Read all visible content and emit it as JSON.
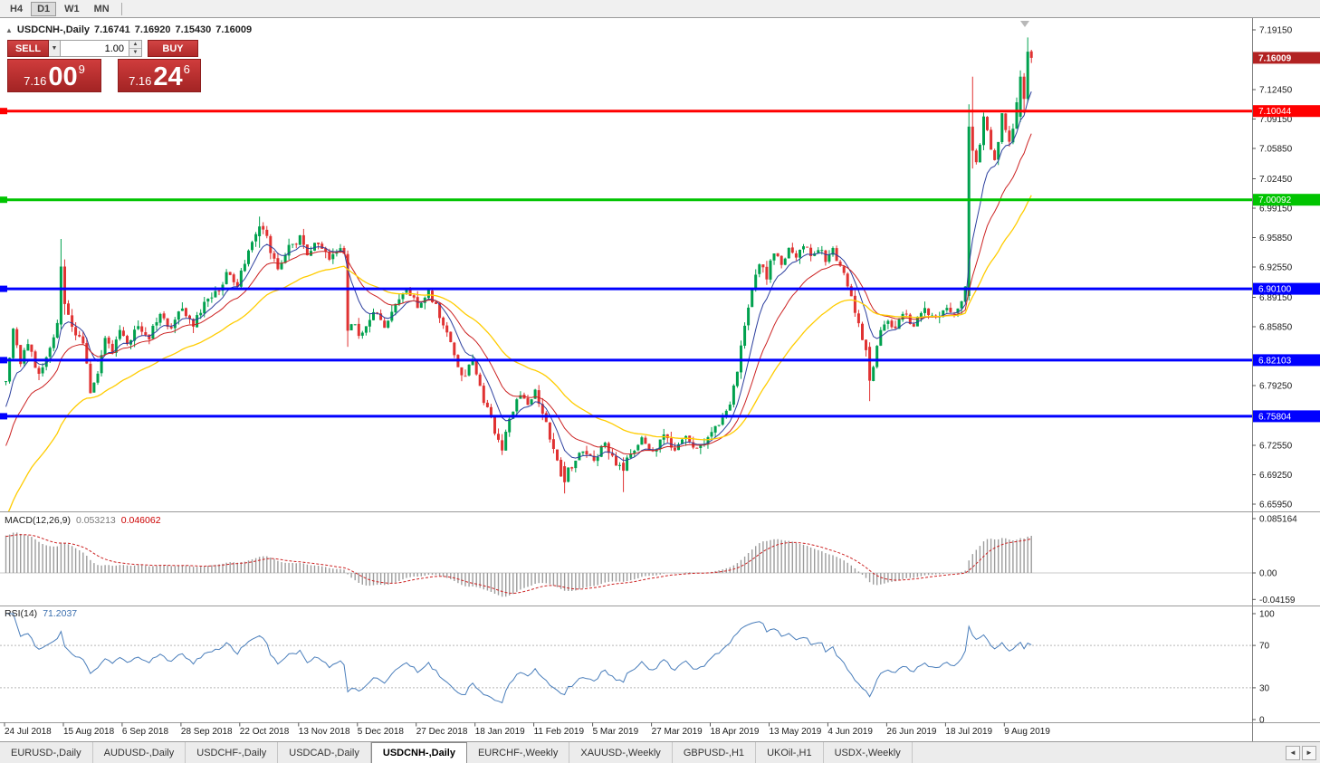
{
  "window": {
    "timeframes": [
      {
        "label": "H4",
        "active": false
      },
      {
        "label": "D1",
        "active": true
      },
      {
        "label": "W1",
        "active": false
      },
      {
        "label": "MN",
        "active": false
      }
    ]
  },
  "header": {
    "symbol_title": "USDCNH-,Daily",
    "open": "7.16741",
    "high": "7.16920",
    "low": "7.15430",
    "close": "7.16009"
  },
  "one_click": {
    "sell_label": "SELL",
    "buy_label": "BUY",
    "volume": "1.00",
    "sell_price": {
      "prefix": "7.16",
      "big": "00",
      "sup": "9"
    },
    "buy_price": {
      "prefix": "7.16",
      "big": "24",
      "sup": "6"
    }
  },
  "price_axis": {
    "ticks": [
      "7.19150",
      "7.12450",
      "7.09150",
      "7.05850",
      "7.02450",
      "6.99150",
      "6.95850",
      "6.92550",
      "6.89150",
      "6.85850",
      "6.79250",
      "6.72550",
      "6.69250",
      "6.65950"
    ],
    "current": {
      "value": "7.16009",
      "bg": "#b22222"
    }
  },
  "macd_panel": {
    "label": "MACD(12,26,9)",
    "main_value": "0.053213",
    "signal_value": "0.046062",
    "axis": [
      "0.085164",
      "0.00",
      "-0.04159"
    ]
  },
  "rsi_panel": {
    "label": "RSI(14)",
    "value": "71.2037",
    "axis": [
      "100",
      "70",
      "30",
      "0"
    ]
  },
  "tab_bar": {
    "scroll_left": "◄",
    "scroll_right": "►",
    "tabs": [
      {
        "label": "EURUSD-,Daily",
        "active": false
      },
      {
        "label": "AUDUSD-,Daily",
        "active": false
      },
      {
        "label": "USDCHF-,Daily",
        "active": false
      },
      {
        "label": "USDCAD-,Daily",
        "active": false
      },
      {
        "label": "USDCNH-,Daily",
        "active": true
      },
      {
        "label": "EURCHF-,Weekly",
        "active": false
      },
      {
        "label": "XAUUSD-,Weekly",
        "active": false
      },
      {
        "label": "GBPUSD-,H1",
        "active": false
      },
      {
        "label": "UKOil-,H1",
        "active": false
      },
      {
        "label": "USDX-,Weekly",
        "active": false
      }
    ]
  },
  "chart_data": {
    "type": "candlestick",
    "symbol": "USDCNH",
    "timeframe": "Daily",
    "num_candles": 280,
    "price_range": {
      "min": 6.6595,
      "max": 7.1915
    },
    "last_candle": {
      "open": 7.16741,
      "high": 7.1692,
      "low": 7.1543,
      "close": 7.16009
    },
    "colors": {
      "up": "#00a14e",
      "down": "#e03232"
    },
    "x_labels": [
      "24 Jul 2018",
      "15 Aug 2018",
      "6 Sep 2018",
      "28 Sep 2018",
      "22 Oct 2018",
      "13 Nov 2018",
      "5 Dec 2018",
      "27 Dec 2018",
      "18 Jan 2019",
      "11 Feb 2019",
      "5 Mar 2019",
      "27 Mar 2019",
      "18 Apr 2019",
      "13 May 2019",
      "4 Jun 2019",
      "26 Jun 2019",
      "18 Jul 2019",
      "9 Aug 2019"
    ],
    "horizontal_lines": [
      {
        "price": 7.10044,
        "label": "7.10044",
        "color": "#ff0000"
      },
      {
        "price": 7.00092,
        "label": "7.00092",
        "color": "#00c400"
      },
      {
        "price": 6.901,
        "label": "6.90100",
        "color": "#0000ff"
      },
      {
        "price": 6.82103,
        "label": "6.82103",
        "color": "#0000ff"
      },
      {
        "price": 6.75804,
        "label": "6.75804",
        "color": "#0000ff"
      }
    ],
    "moving_averages": [
      {
        "period": 8,
        "color": "#2c3f9e",
        "width": 1
      },
      {
        "period": 18,
        "color": "#cc2222",
        "width": 1
      },
      {
        "period": 40,
        "color": "#ffcc00",
        "width": 1.3
      }
    ],
    "indicators": {
      "macd": {
        "fast": 12,
        "slow": 26,
        "signal": 9,
        "current_main": 0.053213,
        "current_signal": 0.046062,
        "axis_max": 0.085164,
        "axis_min": -0.04159
      },
      "rsi": {
        "period": 14,
        "current": 71.2037,
        "levels": [
          70,
          30
        ]
      }
    },
    "warmup": {
      "days": 45,
      "start": 6.4,
      "end": 6.792
    },
    "close_waypoints": [
      [
        0,
        6.795
      ],
      [
        2,
        6.852
      ],
      [
        4,
        6.818
      ],
      [
        6,
        6.842
      ],
      [
        9,
        6.802
      ],
      [
        12,
        6.836
      ],
      [
        14,
        6.864
      ],
      [
        17,
        6.872
      ],
      [
        19,
        6.85
      ],
      [
        21,
        6.842
      ],
      [
        23,
        6.787
      ],
      [
        25,
        6.803
      ],
      [
        27,
        6.845
      ],
      [
        29,
        6.828
      ],
      [
        31,
        6.856
      ],
      [
        33,
        6.838
      ],
      [
        36,
        6.862
      ],
      [
        39,
        6.848
      ],
      [
        42,
        6.872
      ],
      [
        45,
        6.858
      ],
      [
        48,
        6.878
      ],
      [
        51,
        6.862
      ],
      [
        54,
        6.882
      ],
      [
        57,
        6.896
      ],
      [
        60,
        6.916
      ],
      [
        63,
        6.904
      ],
      [
        66,
        6.948
      ],
      [
        68,
        6.966
      ],
      [
        70,
        6.968
      ],
      [
        72,
        6.944
      ],
      [
        74,
        6.926
      ],
      [
        77,
        6.948
      ],
      [
        80,
        6.958
      ],
      [
        82,
        6.942
      ],
      [
        85,
        6.952
      ],
      [
        88,
        6.938
      ],
      [
        91,
        6.946
      ],
      [
        92,
        6.94
      ],
      [
        94,
        6.862
      ],
      [
        97,
        6.848
      ],
      [
        100,
        6.878
      ],
      [
        103,
        6.858
      ],
      [
        106,
        6.886
      ],
      [
        109,
        6.902
      ],
      [
        112,
        6.882
      ],
      [
        115,
        6.898
      ],
      [
        118,
        6.872
      ],
      [
        121,
        6.838
      ],
      [
        124,
        6.802
      ],
      [
        127,
        6.818
      ],
      [
        130,
        6.776
      ],
      [
        133,
        6.742
      ],
      [
        135,
        6.722
      ],
      [
        137,
        6.758
      ],
      [
        140,
        6.782
      ],
      [
        142,
        6.768
      ],
      [
        144,
        6.788
      ],
      [
        146,
        6.762
      ],
      [
        149,
        6.718
      ],
      [
        151,
        6.692
      ],
      [
        153,
        6.697
      ],
      [
        155,
        6.706
      ],
      [
        157,
        6.722
      ],
      [
        160,
        6.706
      ],
      [
        163,
        6.728
      ],
      [
        165,
        6.712
      ],
      [
        167,
        6.702
      ],
      [
        169,
        6.71
      ],
      [
        171,
        6.722
      ],
      [
        173,
        6.732
      ],
      [
        176,
        6.716
      ],
      [
        179,
        6.736
      ],
      [
        182,
        6.722
      ],
      [
        185,
        6.734
      ],
      [
        188,
        6.72
      ],
      [
        191,
        6.736
      ],
      [
        194,
        6.748
      ],
      [
        197,
        6.772
      ],
      [
        199,
        6.812
      ],
      [
        201,
        6.858
      ],
      [
        203,
        6.898
      ],
      [
        205,
        6.928
      ],
      [
        207,
        6.916
      ],
      [
        209,
        6.942
      ],
      [
        211,
        6.928
      ],
      [
        213,
        6.946
      ],
      [
        215,
        6.932
      ],
      [
        217,
        6.95
      ],
      [
        219,
        6.938
      ],
      [
        221,
        6.948
      ],
      [
        223,
        6.934
      ],
      [
        225,
        6.944
      ],
      [
        227,
        6.928
      ],
      [
        229,
        6.908
      ],
      [
        231,
        6.878
      ],
      [
        233,
        6.848
      ],
      [
        234,
        6.828
      ],
      [
        236,
        6.815
      ],
      [
        238,
        6.856
      ],
      [
        240,
        6.868
      ],
      [
        242,
        6.856
      ],
      [
        244,
        6.874
      ],
      [
        247,
        6.862
      ],
      [
        250,
        6.878
      ],
      [
        253,
        6.868
      ],
      [
        256,
        6.88
      ],
      [
        258,
        6.872
      ],
      [
        260,
        6.888
      ],
      [
        261,
        6.908
      ],
      [
        264,
        7.042
      ],
      [
        265,
        7.062
      ],
      [
        266,
        7.092
      ],
      [
        267,
        7.078
      ],
      [
        268,
        7.058
      ],
      [
        269,
        7.046
      ],
      [
        270,
        7.068
      ],
      [
        271,
        7.096
      ],
      [
        272,
        7.082
      ],
      [
        273,
        7.062
      ],
      [
        274,
        7.082
      ],
      [
        275,
        7.108
      ],
      [
        279,
        7.16
      ]
    ],
    "candle_overrides": {
      "15": {
        "o": 6.861,
        "h": 6.957,
        "l": 6.856,
        "c": 6.926
      },
      "16": {
        "o": 6.926,
        "h": 6.934,
        "l": 6.872,
        "c": 6.884
      },
      "69": {
        "o": 6.96,
        "h": 6.982,
        "l": 6.947,
        "c": 6.971
      },
      "93": {
        "o": 6.94,
        "h": 6.944,
        "l": 6.836,
        "c": 6.854
      },
      "152": {
        "o": 6.702,
        "h": 6.707,
        "l": 6.6715,
        "c": 6.684
      },
      "168": {
        "o": 6.706,
        "h": 6.712,
        "l": 6.673,
        "c": 6.697
      },
      "235": {
        "o": 6.836,
        "h": 6.841,
        "l": 6.775,
        "c": 6.798
      },
      "262": {
        "o": 6.893,
        "h": 7.108,
        "l": 6.888,
        "c": 7.083
      },
      "263": {
        "o": 7.083,
        "h": 7.139,
        "l": 7.036,
        "c": 7.056
      },
      "276": {
        "o": 7.094,
        "h": 7.146,
        "l": 7.088,
        "c": 7.139
      },
      "277": {
        "o": 7.139,
        "h": 7.143,
        "l": 7.098,
        "c": 7.114
      },
      "278": {
        "o": 7.114,
        "h": 7.183,
        "l": 7.11,
        "c": 7.167
      },
      "279": {
        "o": 7.16741,
        "h": 7.1692,
        "l": 7.1543,
        "c": 7.16009
      }
    }
  }
}
